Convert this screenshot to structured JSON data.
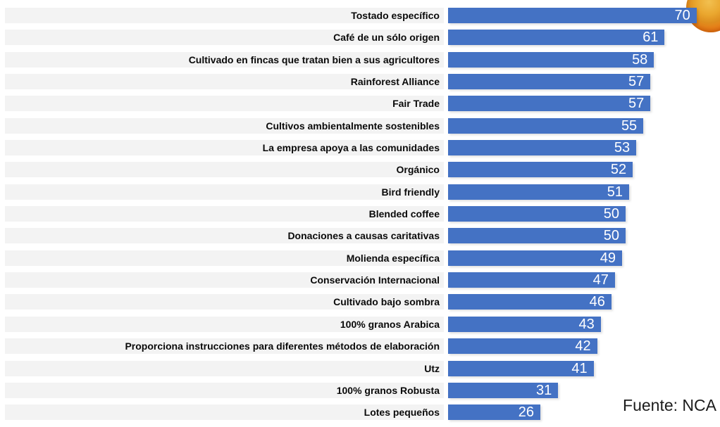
{
  "chart_data": {
    "type": "bar",
    "orientation": "horizontal",
    "title": "",
    "xlabel": "",
    "ylabel": "",
    "xlim": [
      0,
      74
    ],
    "grid": false,
    "legend": false,
    "categories": [
      "Tostado específico",
      "Café de un sólo origen",
      "Cultivado en fincas que tratan bien a sus agricultores",
      "Rainforest Alliance",
      "Fair Trade",
      "Cultivos ambientalmente sostenibles",
      "La empresa apoya a las comunidades",
      "Orgánico",
      "Bird friendly",
      "Blended coffee",
      "Donaciones a causas caritativas",
      "Molienda específica",
      "Conservación Internacional",
      "Cultivado bajo sombra",
      "100% granos Arabica",
      "Proporciona instrucciones para diferentes métodos de elaboración",
      "Utz",
      "100% granos Robusta",
      "Lotes pequeños"
    ],
    "values": [
      70,
      61,
      58,
      57,
      57,
      55,
      53,
      52,
      51,
      50,
      50,
      49,
      47,
      46,
      43,
      42,
      41,
      31,
      26
    ],
    "colors": {
      "bar": "#4472C4",
      "row_band": "#F3F3F3",
      "value_label": "#FFFFFF",
      "category_label": "#0A0A0A"
    }
  },
  "footer": {
    "source": "Fuente: NCA"
  },
  "decor": {
    "icon": "coffee-cup-photo",
    "colors": [
      "#EE7D18",
      "#EAA72F"
    ]
  }
}
